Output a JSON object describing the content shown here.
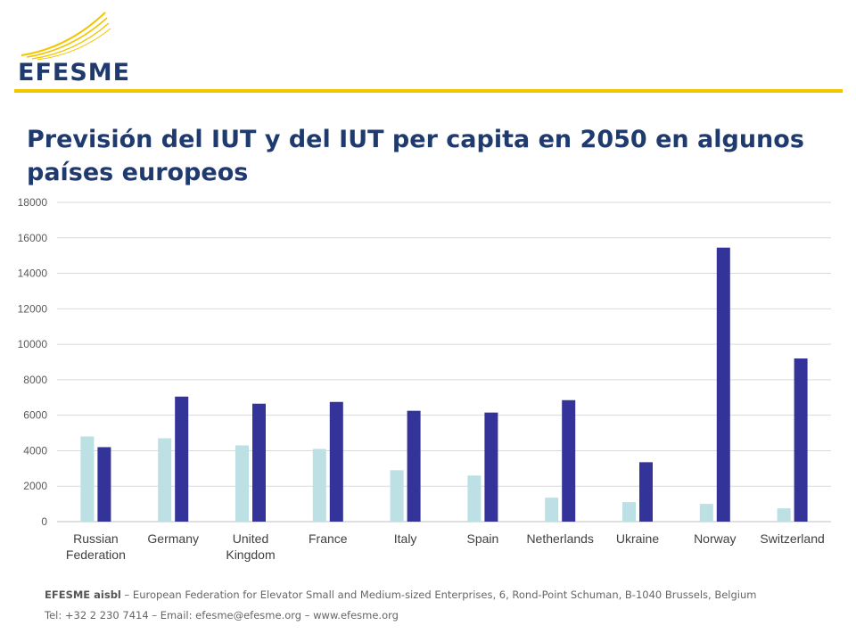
{
  "brand": {
    "name": "EFESME",
    "logo_icon": "efesme-swoosh-logo",
    "accent_color": "#f2c500",
    "text_color": "#1f3a6e"
  },
  "slide": {
    "title": "Previsión del IUT y del IUT per capita en 2050 en algunos países europeos"
  },
  "chart_data": {
    "type": "bar",
    "title": "",
    "xlabel": "",
    "ylabel": "",
    "ylim": [
      0,
      18000
    ],
    "yticks": [
      0,
      2000,
      4000,
      6000,
      8000,
      10000,
      12000,
      14000,
      16000,
      18000
    ],
    "grid": true,
    "legend": "none",
    "categories": [
      [
        "Russian",
        "Federation"
      ],
      [
        "Germany"
      ],
      [
        "United",
        "Kingdom"
      ],
      [
        "France"
      ],
      [
        "Italy"
      ],
      [
        "Spain"
      ],
      [
        "Netherlands"
      ],
      [
        "Ukraine"
      ],
      [
        "Norway"
      ],
      [
        "Switzerland"
      ]
    ],
    "series": [
      {
        "color": "#bde0e4",
        "values": [
          4800,
          4700,
          4300,
          4100,
          2900,
          2600,
          1350,
          1100,
          1000,
          750
        ]
      },
      {
        "color": "#33339a",
        "values": [
          4200,
          7050,
          6650,
          6750,
          6250,
          6150,
          6850,
          3350,
          15450,
          9200
        ]
      }
    ]
  },
  "footer": {
    "org_name": "EFESME aisbl",
    "org_rest": " – European Federation for Elevator Small and Medium-sized Enterprises, 6, Rond-Point Schuman, B-1040 Brussels, Belgium",
    "contact": "Tel: +32 2 230 7414 – Email: efesme@efesme.org – www.efesme.org"
  }
}
